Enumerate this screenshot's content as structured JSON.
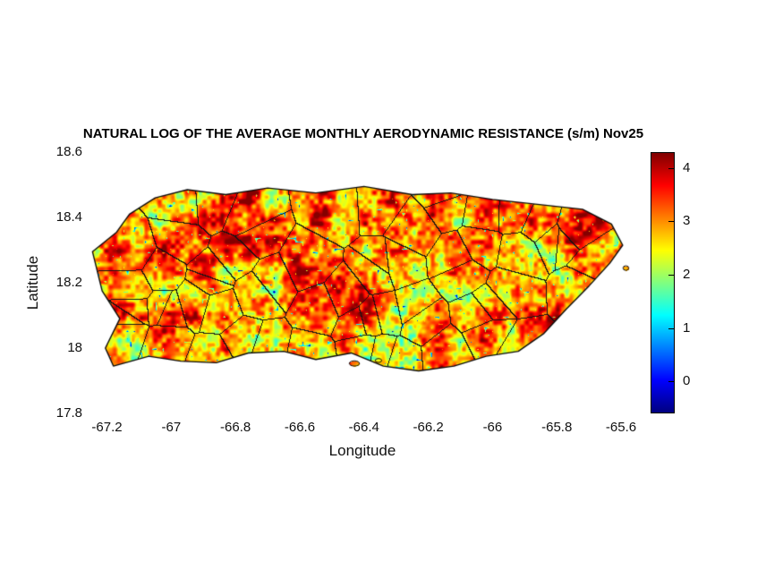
{
  "chart_data": {
    "type": "heatmap",
    "title": "NATURAL LOG OF THE AVERAGE MONTHLY AERODYNAMIC RESISTANCE (s/m) Nov25",
    "xlabel": "Longitude",
    "ylabel": "Latitude",
    "region": "Puerto Rico with municipality boundaries",
    "value_description": "natural log of average monthly aerodynamic resistance (s/m)",
    "xlim": [
      -67.26,
      -65.55
    ],
    "ylim": [
      17.8,
      18.6
    ],
    "x_ticks": [
      -67.2,
      -67,
      -66.8,
      -66.6,
      -66.4,
      -66.2,
      -66,
      -65.8,
      -65.6
    ],
    "x_tick_labels": [
      "-67.2",
      "-67",
      "-66.8",
      "-66.6",
      "-66.4",
      "-66.2",
      "-66",
      "-65.8",
      "-65.6"
    ],
    "y_ticks": [
      18.6,
      18.4,
      18.2,
      18,
      17.8
    ],
    "y_tick_labels": [
      "18.6",
      "18.4",
      "18.2",
      "18",
      "17.8"
    ],
    "grid": false,
    "colormap": "jet",
    "colormap_stops": [
      "#000080",
      "#0000FF",
      "#00FFFF",
      "#FFFF00",
      "#FF0000",
      "#800000"
    ],
    "colormap_stop_positions": [
      0,
      0.125,
      0.375,
      0.625,
      0.875,
      1
    ],
    "clim": [
      -0.6,
      4.3
    ],
    "colorbar_position": "right",
    "colorbar_ticks": [
      0,
      1,
      2,
      3,
      4
    ],
    "colorbar_tick_labels": [
      "0",
      "1",
      "2",
      "3",
      "4"
    ],
    "value_range_observed": [
      -0.5,
      4.25
    ],
    "dominant_value_band": [
      2.5,
      4.0
    ],
    "municipality_count": 62,
    "boundary_color": "#141414",
    "coast_color": "#0a0a0a",
    "outline": [
      [
        -67.13,
        18.41
      ],
      [
        -67.05,
        18.46
      ],
      [
        -66.95,
        18.485
      ],
      [
        -66.83,
        18.47
      ],
      [
        -66.7,
        18.49
      ],
      [
        -66.55,
        18.475
      ],
      [
        -66.4,
        18.495
      ],
      [
        -66.25,
        18.47
      ],
      [
        -66.13,
        18.475
      ],
      [
        -66.0,
        18.455
      ],
      [
        -65.86,
        18.44
      ],
      [
        -65.72,
        18.425
      ],
      [
        -65.63,
        18.38
      ],
      [
        -65.595,
        18.315
      ],
      [
        -65.635,
        18.26
      ],
      [
        -65.7,
        18.19
      ],
      [
        -65.77,
        18.12
      ],
      [
        -65.84,
        18.045
      ],
      [
        -65.92,
        17.99
      ],
      [
        -66.02,
        17.975
      ],
      [
        -66.12,
        17.945
      ],
      [
        -66.23,
        17.93
      ],
      [
        -66.34,
        17.945
      ],
      [
        -66.44,
        17.985
      ],
      [
        -66.55,
        17.965
      ],
      [
        -66.65,
        17.99
      ],
      [
        -66.76,
        17.985
      ],
      [
        -66.86,
        17.955
      ],
      [
        -66.97,
        17.96
      ],
      [
        -67.07,
        17.975
      ],
      [
        -67.18,
        17.945
      ],
      [
        -67.205,
        18.0
      ],
      [
        -67.16,
        18.09
      ],
      [
        -67.215,
        18.175
      ],
      [
        -67.245,
        18.295
      ],
      [
        -67.17,
        18.355
      ]
    ],
    "islets": [
      [
        -66.43,
        17.953,
        0.016,
        0.008
      ],
      [
        -66.355,
        17.962,
        0.01,
        0.006
      ],
      [
        -65.585,
        18.245,
        0.009,
        0.007
      ]
    ],
    "texture": {
      "base": 1.55,
      "amp": 2.75,
      "gamma": 0.95,
      "detail_amp": 1.5,
      "speck_threshold": 0.9,
      "speck_strength": 28,
      "cells_large": 26,
      "cells_medium": 11,
      "cells_detail": 5,
      "cells_speck": 4,
      "weight_large": 0.65,
      "weight_medium": 0.35
    }
  }
}
